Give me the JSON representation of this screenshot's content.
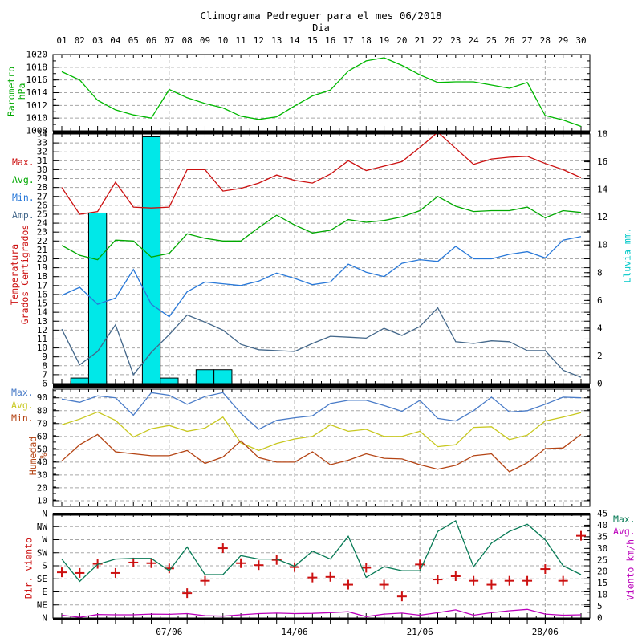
{
  "title": "Climograma Pedreguer para el mes 06/2018",
  "x_axis": {
    "label": "Dia",
    "day_labels": [
      "01",
      "02",
      "03",
      "04",
      "05",
      "06",
      "07",
      "08",
      "09",
      "10",
      "11",
      "12",
      "13",
      "14",
      "15",
      "16",
      "17",
      "18",
      "19",
      "20",
      "21",
      "22",
      "23",
      "24",
      "25",
      "26",
      "27",
      "28",
      "29",
      "30"
    ],
    "week_ticks": {
      "days": [
        7,
        14,
        21,
        28
      ],
      "labels": [
        "07/06",
        "14/06",
        "21/06",
        "28/06"
      ]
    }
  },
  "chart_data": {
    "type": "multi-panel line/bar climogram",
    "panels": {
      "barometro": {
        "axis_label": {
          "lines": [
            "Barometro",
            "hPa"
          ],
          "color": "#00a800"
        },
        "ylim": [
          1008,
          1020
        ],
        "grid": {
          "from": 1010,
          "to": 1018,
          "step": 2
        },
        "yticks_left": {
          "values": [
            1020,
            1018,
            1016,
            1014,
            1012,
            1010,
            1008
          ],
          "labels": [
            "1020",
            "1018",
            "1016",
            "1014",
            "1012",
            "1010",
            "1008"
          ],
          "minor_step": 1
        },
        "series": [
          {
            "name": "Presion",
            "type": "line",
            "axis": "left",
            "color": "#00b800",
            "values": [
              1017.3,
              1016.0,
              1012.8,
              1011.3,
              1010.5,
              1010.0,
              1014.5,
              1013.2,
              1012.3,
              1011.6,
              1010.3,
              1009.8,
              1010.2,
              1011.9,
              1013.5,
              1014.4,
              1017.4,
              1019.0,
              1019.5,
              1018.3,
              1016.8,
              1015.6,
              1015.7,
              1015.7,
              1015.2,
              1014.7,
              1015.6,
              1010.4,
              1009.7,
              1008.7
            ]
          }
        ]
      },
      "temperatura": {
        "axis_label": {
          "lines": [
            "Temperatura",
            "Grados Centigrados"
          ],
          "color": "#cc1111"
        },
        "right_axis_label": {
          "lines": [
            "Lluvia mm."
          ],
          "color": "#00c8c8"
        },
        "legend": [
          {
            "label": "Max.",
            "color": "#cc1111"
          },
          {
            "label": "Avg.",
            "color": "#00a800"
          },
          {
            "label": "Min.",
            "color": "#2878d8"
          },
          {
            "label": "Amp.",
            "color": "#43678a"
          }
        ],
        "ylim": [
          6,
          34
        ],
        "right_ylim": [
          0,
          18
        ],
        "grid": {
          "from": 7,
          "to": 33,
          "step": 1
        },
        "yticks_left": {
          "values": [
            34,
            33,
            32,
            31,
            30,
            29,
            28,
            27,
            26,
            25,
            24,
            23,
            22,
            21,
            20,
            19,
            18,
            17,
            16,
            15,
            14,
            13,
            12,
            11,
            10,
            9,
            8,
            7,
            6
          ],
          "labels": [
            "34",
            "33",
            "32",
            "31",
            "30",
            "29",
            "28",
            "27",
            "26",
            "25",
            "24",
            "23",
            "22",
            "21",
            "20",
            "19",
            "18",
            "17",
            "16",
            "15",
            "14",
            "13",
            "12",
            "11",
            "10",
            "9",
            "8",
            "7",
            "6"
          ]
        },
        "yticks_right": {
          "values": [
            18,
            16,
            14,
            12,
            10,
            8,
            6,
            4,
            2,
            0
          ],
          "labels": [
            "18",
            "16",
            "14",
            "12",
            "10",
            "8",
            "6",
            "4",
            "2",
            "0"
          ],
          "minor_step": 1
        },
        "series": [
          {
            "name": "Lluvia",
            "type": "bars",
            "axis": "right",
            "color": "#00e8e8",
            "values": [
              0,
              0.4,
              12.3,
              0,
              0,
              17.8,
              0.4,
              0,
              1.0,
              1.0,
              0,
              0,
              0,
              0,
              0,
              0,
              0,
              0,
              0,
              0,
              0,
              0,
              0,
              0,
              0,
              0,
              0,
              0,
              0,
              0
            ]
          },
          {
            "name": "Max",
            "type": "line",
            "axis": "left",
            "color": "#cc1111",
            "values": [
              28.0,
              25.0,
              25.3,
              28.6,
              25.8,
              25.7,
              25.8,
              30.0,
              30.0,
              27.6,
              27.9,
              28.5,
              29.4,
              28.8,
              28.5,
              29.5,
              31.0,
              29.9,
              30.4,
              30.9,
              32.5,
              34.2,
              32.4,
              30.6,
              31.2,
              31.4,
              31.5,
              30.7,
              30.0,
              29.1
            ]
          },
          {
            "name": "Avg",
            "type": "line",
            "axis": "left",
            "color": "#00a800",
            "values": [
              21.5,
              20.4,
              19.9,
              22.1,
              22.0,
              20.2,
              20.6,
              22.8,
              22.3,
              22.0,
              22.0,
              23.5,
              24.9,
              23.8,
              22.9,
              23.2,
              24.4,
              24.1,
              24.3,
              24.7,
              25.4,
              27.0,
              25.9,
              25.3,
              25.4,
              25.4,
              25.8,
              24.6,
              25.4,
              25.2
            ]
          },
          {
            "name": "Min",
            "type": "line",
            "axis": "left",
            "color": "#2878d8",
            "values": [
              15.9,
              16.8,
              14.9,
              15.6,
              18.8,
              14.9,
              13.5,
              16.3,
              17.4,
              17.2,
              17.0,
              17.5,
              18.4,
              17.8,
              17.1,
              17.4,
              19.4,
              18.5,
              18.0,
              19.5,
              19.9,
              19.7,
              21.4,
              20.0,
              20.0,
              20.5,
              20.8,
              20.1,
              22.1,
              22.5
            ]
          },
          {
            "name": "Amp",
            "type": "line",
            "axis": "left",
            "color": "#43678a",
            "values": [
              12.1,
              8.1,
              9.6,
              12.6,
              7.0,
              9.5,
              11.5,
              13.7,
              12.9,
              12.0,
              10.4,
              9.8,
              9.7,
              9.6,
              10.5,
              11.3,
              11.2,
              11.1,
              12.2,
              11.4,
              12.4,
              14.5,
              10.7,
              10.5,
              10.8,
              10.7,
              9.7,
              9.7,
              7.5,
              6.7
            ]
          }
        ]
      },
      "humedad": {
        "axis_label": {
          "lines": [
            "Humedad",
            "%"
          ],
          "color": "#b44414"
        },
        "legend": [
          {
            "label": "Max.",
            "color": "#4a7cc8"
          },
          {
            "label": "Avg.",
            "color": "#c8c820"
          },
          {
            "label": "Min.",
            "color": "#b44414"
          }
        ],
        "ylim": [
          5.6,
          96.7
        ],
        "grid": {
          "from": 10,
          "to": 90,
          "step": 10
        },
        "yticks_left": {
          "values": [
            90,
            80,
            70,
            60,
            50,
            40,
            30,
            20,
            10
          ],
          "labels": [
            "90",
            "80",
            "70",
            "60",
            "50",
            "40",
            "30",
            "20",
            "10"
          ],
          "minor_step": 5
        },
        "series": [
          {
            "name": "Max",
            "type": "line",
            "axis": "left",
            "color": "#4a7cc8",
            "values": [
              89,
              86.5,
              91.5,
              90,
              76.5,
              94,
              92,
              85,
              91,
              94,
              78,
              65.5,
              72.5,
              74.5,
              76,
              85.5,
              88,
              88,
              84,
              79.5,
              88,
              74,
              72,
              80,
              90.5,
              79,
              80,
              85,
              90.5,
              90
            ]
          },
          {
            "name": "Avg",
            "type": "line",
            "axis": "left",
            "color": "#c8c820",
            "values": [
              69,
              73.5,
              79,
              72.5,
              59.5,
              66,
              68.5,
              64,
              66.5,
              75,
              55,
              49,
              54.5,
              58,
              60,
              69,
              64,
              65.5,
              60,
              60,
              64,
              52,
              53.5,
              67,
              67.5,
              57.5,
              61,
              72,
              75,
              78.5
            ]
          },
          {
            "name": "Min",
            "type": "line",
            "axis": "left",
            "color": "#b44414",
            "values": [
              41,
              53.5,
              61.5,
              48,
              46.5,
              45,
              45,
              49,
              39,
              44,
              56.5,
              43.5,
              40,
              40,
              48,
              38,
              41.5,
              46.5,
              43,
              42.5,
              38,
              34.5,
              37.5,
              45,
              46.5,
              32.5,
              39.5,
              50.5,
              51,
              61.5
            ]
          }
        ]
      },
      "viento": {
        "axis_label": {
          "lines": [
            "Dir. viento"
          ],
          "color": "#cc1111"
        },
        "right_axis_label": {
          "lines": [
            "Viento km/h"
          ],
          "color": "#bb00bb"
        },
        "legend": [
          {
            "label": "Max.",
            "color": "#077a55"
          },
          {
            "label": "Avg.",
            "color": "#bb00bb"
          }
        ],
        "ylim": [
          0,
          8
        ],
        "right_ylim": [
          0,
          45
        ],
        "grid": {
          "from": 1,
          "to": 7,
          "step": 1
        },
        "yticks_left": {
          "values": [
            8,
            7,
            6,
            5,
            4,
            3,
            2,
            1,
            0
          ],
          "labels": [
            "N",
            "NW",
            "W",
            "SW",
            "S",
            "SE",
            "E",
            "NE",
            "N"
          ]
        },
        "yticks_right": {
          "values": [
            45,
            40,
            35,
            30,
            25,
            20,
            15,
            10,
            5,
            0
          ],
          "labels": [
            "45",
            "40",
            "35",
            "30",
            "25",
            "20",
            "15",
            "10",
            "5",
            "0"
          ],
          "minor_step": 2.5
        },
        "dir_scale": "0=N 1=NE 2=E 3=SE 4=S 5=SW 6=W 7=NW 8=N",
        "series": [
          {
            "name": "Direccion",
            "type": "plus",
            "axis": "left",
            "color": "#cc1111",
            "values": [
              3.5,
              3.45,
              4.15,
              3.45,
              4.25,
              4.2,
              3.8,
              1.9,
              2.85,
              5.35,
              4.2,
              4.05,
              4.45,
              3.9,
              3.1,
              3.15,
              2.55,
              3.85,
              2.55,
              1.65,
              4.1,
              2.95,
              3.2,
              2.85,
              2.55,
              2.85,
              2.85,
              3.75,
              2.85,
              6.3
            ]
          },
          {
            "name": "Max",
            "type": "line",
            "axis": "right",
            "color": "#077a55",
            "values": [
              25.4,
              15.8,
              23.1,
              25.4,
              25.7,
              25.7,
              20.4,
              30.6,
              18.7,
              18.7,
              26.9,
              25.4,
              25.4,
              22.3,
              28.8,
              25.4,
              35.2,
              17.5,
              22.1,
              20.4,
              20.4,
              37.3,
              41.9,
              22.1,
              32.3,
              37.3,
              40.4,
              33.7,
              22.5,
              18.7
            ]
          },
          {
            "name": "Avg",
            "type": "line",
            "axis": "right",
            "color": "#bb00bb",
            "values": [
              1.2,
              0.3,
              1.5,
              1.4,
              1.4,
              1.7,
              1.6,
              1.9,
              1.0,
              0.8,
              1.4,
              1.9,
              2.1,
              1.9,
              2.0,
              2.3,
              2.7,
              0.6,
              1.7,
              2.1,
              1.2,
              2.3,
              3.5,
              1.2,
              2.3,
              3.1,
              3.7,
              1.7,
              1.2,
              1.4
            ]
          }
        ]
      }
    }
  }
}
